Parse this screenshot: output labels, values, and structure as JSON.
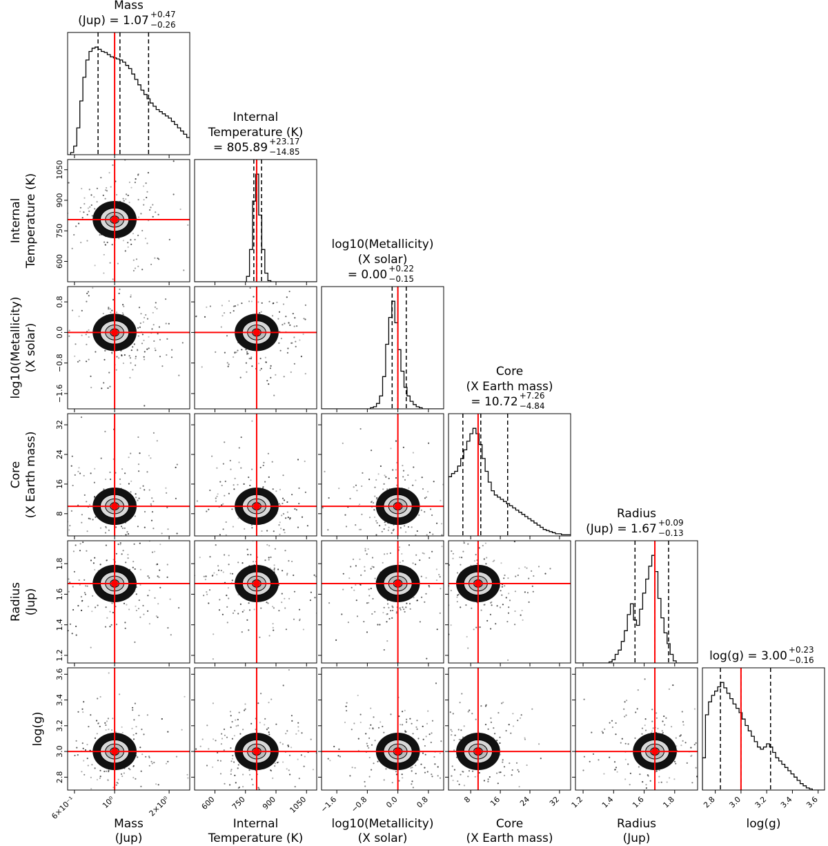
{
  "chart_data": {
    "type": "corner",
    "colors": {
      "truth": "#ff0000",
      "hist": "#000000",
      "quantile": "#000000",
      "density": "#000000"
    },
    "parameters": [
      {
        "key": "mass",
        "axis_label_lines": [
          "Mass",
          "(Jup)"
        ],
        "title_name_lines": [
          "Mass"
        ],
        "title_expr": "(Jup) = 1.07",
        "plus": "+0.47",
        "minus": "−0.26",
        "scale": "log",
        "range": [
          0.55,
          2.6
        ],
        "ticks": [
          0.6,
          1.0,
          2.0
        ],
        "tick_labels": [
          "6×10⁻¹",
          "10⁰",
          "2×10⁰"
        ],
        "truth": 1.0,
        "quantiles": [
          0.81,
          1.07,
          1.54
        ],
        "hist": [
          0,
          0.02,
          0.08,
          0.25,
          0.5,
          0.72,
          0.88,
          0.96,
          0.99,
          1.0,
          0.98,
          0.96,
          0.95,
          0.93,
          0.91,
          0.9,
          0.89,
          0.88,
          0.86,
          0.83,
          0.8,
          0.75,
          0.7,
          0.65,
          0.6,
          0.56,
          0.52,
          0.48,
          0.45,
          0.42,
          0.4,
          0.38,
          0.36,
          0.34,
          0.31,
          0.28,
          0.25,
          0.22,
          0.19,
          0.16
        ]
      },
      {
        "key": "tint",
        "axis_label_lines": [
          "Internal",
          "Temperature (K)"
        ],
        "title_name_lines": [
          "Internal",
          "Temperature (K)"
        ],
        "title_expr": "= 805.89",
        "plus": "+23.17",
        "minus": "−14.85",
        "scale": "linear",
        "range": [
          500,
          1100
        ],
        "ticks": [
          600,
          750,
          900,
          1050
        ],
        "tick_labels": [
          "600",
          "750",
          "900",
          "1050"
        ],
        "truth": 805,
        "quantiles": [
          791,
          806,
          829
        ],
        "hist": [
          0,
          0,
          0,
          0,
          0,
          0,
          0,
          0,
          0,
          0,
          0,
          0,
          0,
          0,
          0,
          0,
          0,
          0.05,
          0.3,
          0.75,
          1.0,
          0.62,
          0.3,
          0.08,
          0.01,
          0,
          0,
          0,
          0,
          0,
          0,
          0,
          0,
          0,
          0,
          0,
          0,
          0,
          0,
          0
        ]
      },
      {
        "key": "met",
        "axis_label_lines": [
          "log10(Metallicity)",
          "(X solar)"
        ],
        "title_name_lines": [
          "log10(Metallicity)",
          "(X solar)"
        ],
        "title_expr": "= 0.00",
        "plus": "+0.22",
        "minus": "−0.15",
        "scale": "linear",
        "range": [
          -2.0,
          1.2
        ],
        "ticks": [
          -1.6,
          -0.8,
          0.0,
          0.8
        ],
        "tick_labels": [
          "−1.6",
          "−0.8",
          "0.0",
          "0.8"
        ],
        "truth": 0.0,
        "quantiles": [
          -0.15,
          0.0,
          0.22
        ],
        "hist": [
          0,
          0,
          0,
          0,
          0,
          0,
          0,
          0,
          0,
          0,
          0,
          0,
          0,
          0,
          0,
          0,
          0.01,
          0.02,
          0.05,
          0.12,
          0.3,
          0.6,
          0.85,
          1.0,
          0.8,
          0.55,
          0.35,
          0.2,
          0.12,
          0.07,
          0.04,
          0.02,
          0.01,
          0,
          0,
          0,
          0,
          0,
          0,
          0
        ]
      },
      {
        "key": "core",
        "axis_label_lines": [
          "Core",
          "(X Earth mass)"
        ],
        "title_name_lines": [
          "Core",
          "(X Earth mass)"
        ],
        "title_expr": "= 10.72",
        "plus": "+7.26",
        "minus": "−4.84",
        "scale": "linear",
        "range": [
          2,
          35
        ],
        "ticks": [
          8,
          16,
          24,
          32
        ],
        "tick_labels": [
          "8",
          "16",
          "24",
          "32"
        ],
        "truth": 10.0,
        "quantiles": [
          5.88,
          10.72,
          17.98
        ],
        "hist": [
          0.55,
          0.58,
          0.6,
          0.65,
          0.72,
          0.8,
          0.88,
          0.95,
          1.0,
          0.95,
          0.85,
          0.72,
          0.6,
          0.5,
          0.42,
          0.38,
          0.36,
          0.34,
          0.32,
          0.3,
          0.28,
          0.26,
          0.24,
          0.22,
          0.2,
          0.18,
          0.16,
          0.14,
          0.12,
          0.1,
          0.08,
          0.06,
          0.05,
          0.04,
          0.03,
          0.02,
          0.02,
          0.01,
          0.01,
          0.01
        ]
      },
      {
        "key": "radius",
        "axis_label_lines": [
          "Radius",
          "(Jup)"
        ],
        "title_name_lines": [
          "Radius"
        ],
        "title_expr": "(Jup) = 1.67",
        "plus": "+0.09",
        "minus": "−0.13",
        "scale": "linear",
        "range": [
          1.15,
          1.95
        ],
        "ticks": [
          1.2,
          1.4,
          1.6,
          1.8
        ],
        "tick_labels": [
          "1.2",
          "1.4",
          "1.6",
          "1.8"
        ],
        "truth": 1.67,
        "quantiles": [
          1.54,
          1.67,
          1.76
        ],
        "hist": [
          0,
          0,
          0,
          0,
          0,
          0,
          0,
          0,
          0,
          0,
          0,
          0.01,
          0.03,
          0.08,
          0.12,
          0.2,
          0.3,
          0.45,
          0.55,
          0.4,
          0.35,
          0.5,
          0.65,
          0.78,
          0.9,
          1.0,
          0.85,
          0.6,
          0.42,
          0.28,
          0.18,
          0.08,
          0.02,
          0,
          0,
          0,
          0,
          0,
          0,
          0
        ]
      },
      {
        "key": "logg",
        "axis_label_lines": [
          "log(g)"
        ],
        "title_name_lines": [],
        "title_expr": "log(g) = 3.00",
        "plus": "+0.23",
        "minus": "−0.16",
        "scale": "linear",
        "range": [
          2.7,
          3.65
        ],
        "ticks": [
          2.8,
          3.0,
          3.2,
          3.4,
          3.6
        ],
        "tick_labels": [
          "2.8",
          "3.0",
          "3.2",
          "3.4",
          "3.6"
        ],
        "truth": 3.0,
        "quantiles": [
          2.84,
          3.0,
          3.23
        ],
        "hist": [
          0.3,
          0.7,
          0.82,
          0.88,
          0.92,
          0.96,
          1.0,
          0.95,
          0.9,
          0.85,
          0.8,
          0.76,
          0.72,
          0.66,
          0.6,
          0.55,
          0.5,
          0.45,
          0.4,
          0.38,
          0.4,
          0.43,
          0.4,
          0.35,
          0.3,
          0.27,
          0.24,
          0.21,
          0.18,
          0.15,
          0.12,
          0.09,
          0.06,
          0.04,
          0.02,
          0.01,
          0,
          0,
          0,
          0
        ]
      }
    ]
  }
}
